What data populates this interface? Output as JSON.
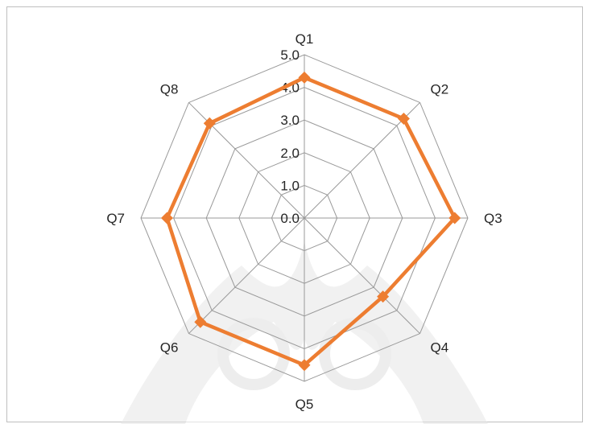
{
  "chart_data": {
    "type": "radar",
    "categories": [
      "Q1",
      "Q2",
      "Q3",
      "Q4",
      "Q5",
      "Q6",
      "Q7",
      "Q8"
    ],
    "series": [
      {
        "values": [
          4.3,
          4.3,
          4.6,
          3.4,
          4.5,
          4.5,
          4.2,
          4.1
        ]
      }
    ],
    "rlim": [
      0,
      5
    ],
    "r_ticks": [
      "0.0",
      "1.0",
      "2.0",
      "3.0",
      "4.0",
      "5.0"
    ],
    "grid": true,
    "legend": "none",
    "colors": {
      "series": "#ED7D31",
      "grid": "#999999",
      "watermark": "#d9d9d9"
    }
  }
}
